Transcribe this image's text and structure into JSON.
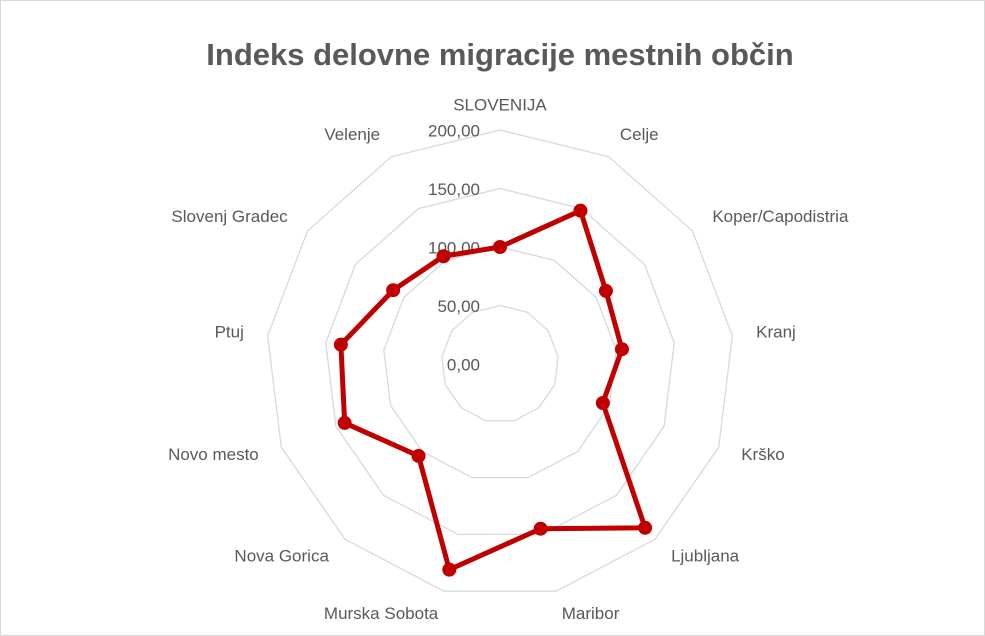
{
  "chart_data": {
    "type": "radar",
    "title": "Indeks delovne migracije mestnih občin",
    "categories": [
      "SLOVENIJA",
      "Celje",
      "Koper/Capodistria",
      "Kranj",
      "Krško",
      "Ljubljana",
      "Maribor",
      "Murska Sobota",
      "Nova Gorica",
      "Novo mesto",
      "Ptuj",
      "Slovenj Gradec",
      "Velenje"
    ],
    "values": [
      100,
      148,
      110,
      105,
      94,
      187,
      145,
      181,
      105,
      142,
      137,
      111,
      104
    ],
    "color": "#c00000",
    "ylim": [
      0,
      200
    ],
    "yticks": [
      {
        "value": 0,
        "label": "0,00"
      },
      {
        "value": 50,
        "label": "50,00"
      },
      {
        "value": 100,
        "label": "100,00"
      },
      {
        "value": 150,
        "label": "150,00"
      },
      {
        "value": 200,
        "label": "200,00"
      }
    ],
    "grid": true
  }
}
